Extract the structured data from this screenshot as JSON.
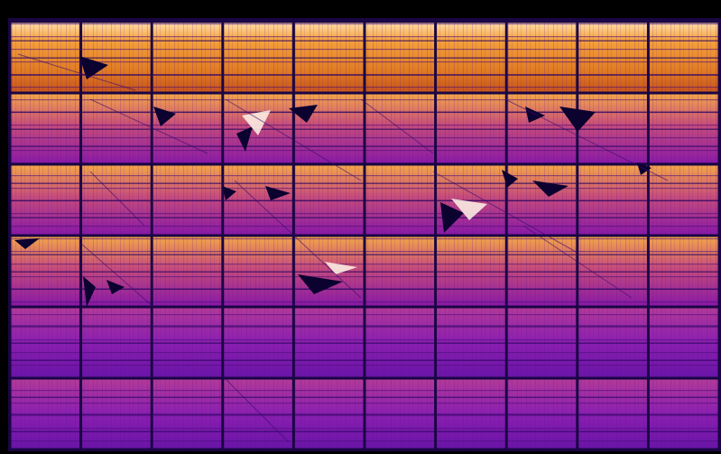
{
  "image": {
    "kind": "electroluminescence thermal-style photo of a solar module",
    "grid": {
      "columns": 10,
      "rows": 6
    },
    "palette": {
      "background": "#000000",
      "gridline": "#1a0644",
      "dark": "#0b0230",
      "violet": "#5a12a6",
      "magenta": "#9a1fb8",
      "orange": "#f08a2a",
      "bright": "#ffd39a",
      "white": "#fff6e6"
    }
  }
}
